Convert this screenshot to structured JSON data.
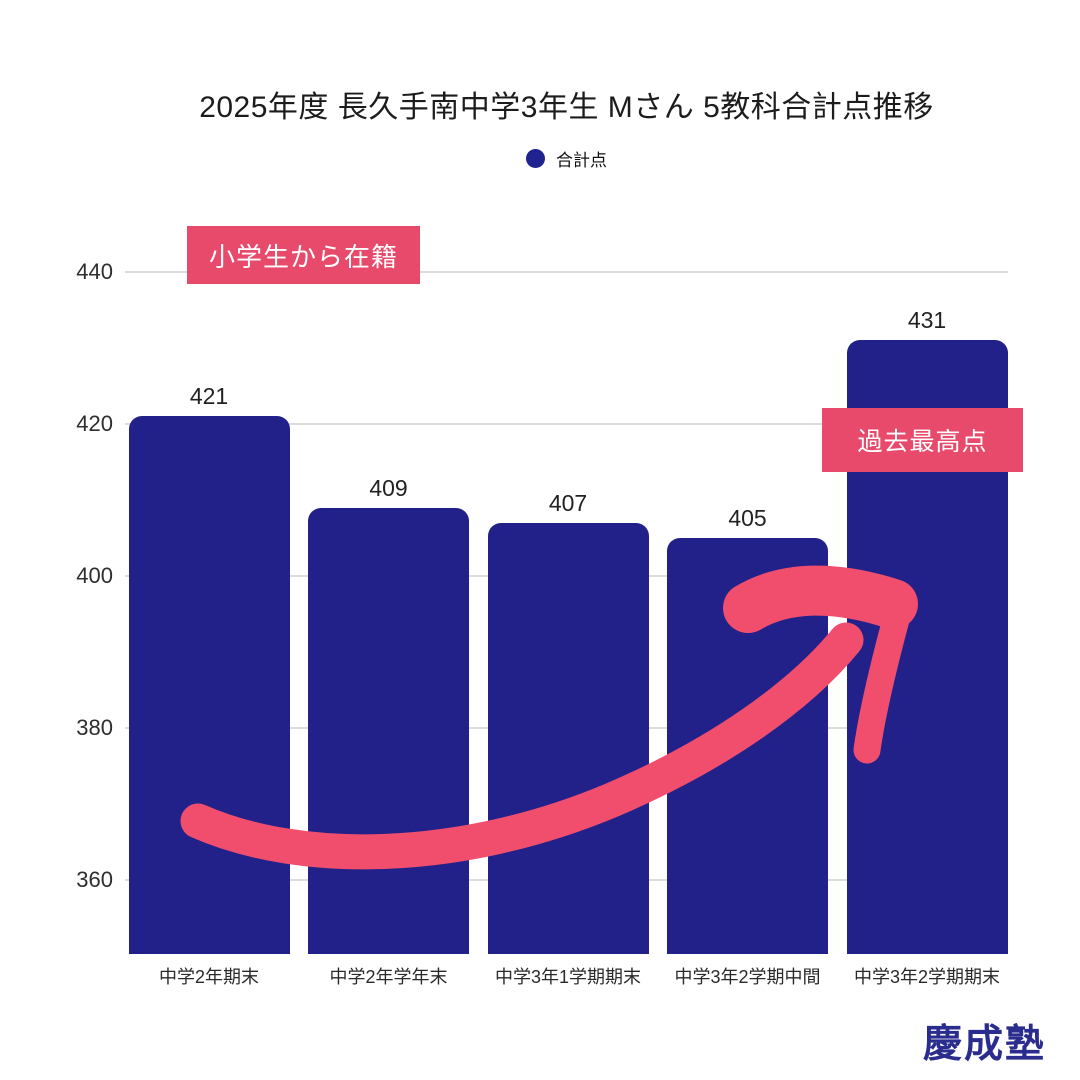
{
  "title": "2025年度 長久手南中学3年生 Mさん 5教科合計点推移",
  "legend": {
    "label": "合計点",
    "dot_color": "#1f2390"
  },
  "chart_data": {
    "type": "bar",
    "title": "2025年度 長久手南中学3年生 Mさん 5教科合計点推移",
    "series_name": "合計点",
    "categories": [
      "中学2年期末",
      "中学2年学年末",
      "中学3年1学期期末",
      "中学3年2学期中間",
      "中学3年2学期期末"
    ],
    "values": [
      421,
      409,
      407,
      405,
      431
    ],
    "yticks": [
      440,
      420,
      400,
      380,
      360
    ],
    "ylim": [
      351,
      445
    ],
    "grid": true,
    "legend_position": "top-center",
    "bar_color": "#222189",
    "gridline_color": "#dcdcdc"
  },
  "annotations": {
    "start_badge": {
      "label": "小学生から在籍"
    },
    "peak_badge": {
      "label": "過去最高点"
    },
    "badge_color": "#e84a6c",
    "arrow_color": "#f14e6e"
  },
  "logo": {
    "text": "慶成塾",
    "color": "#2b2d8e"
  }
}
